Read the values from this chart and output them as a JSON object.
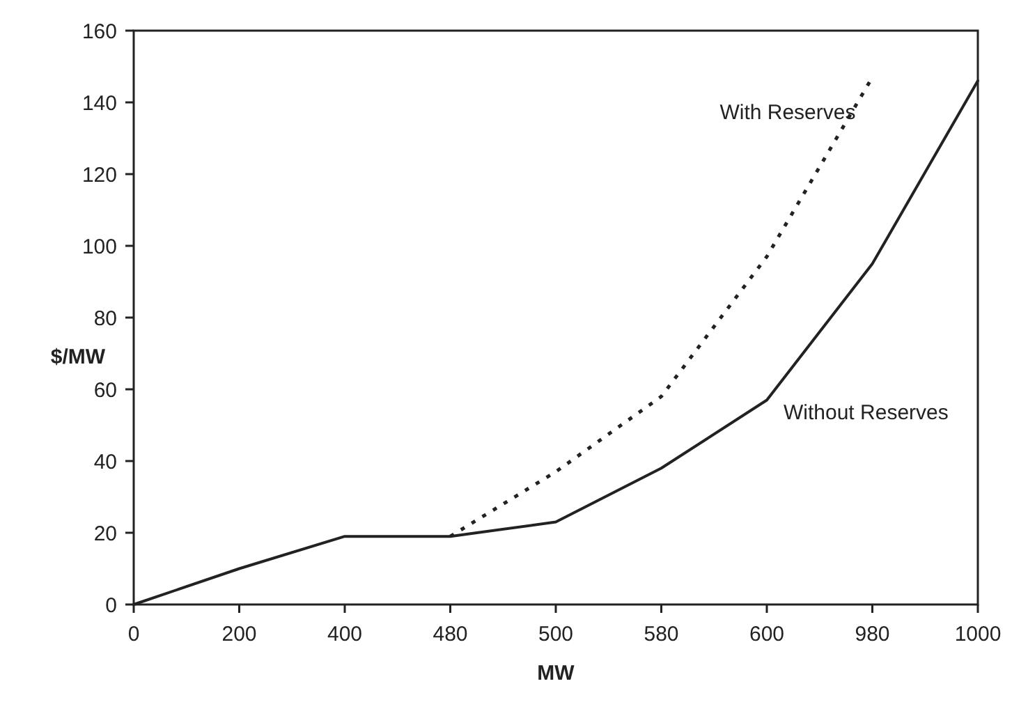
{
  "chart_data": {
    "type": "line",
    "xlabel": "MW",
    "ylabel": "$/MW",
    "categories": [
      "0",
      "200",
      "400",
      "480",
      "500",
      "580",
      "600",
      "980",
      "1000"
    ],
    "series": [
      {
        "name": "With Reserves",
        "color": "#222222",
        "line_style": "dotted",
        "values": [
          null,
          null,
          null,
          19,
          37,
          58,
          97,
          147,
          null
        ]
      },
      {
        "name": "Without Reserves",
        "color": "#222222",
        "line_style": "solid",
        "values": [
          0,
          10,
          19,
          19,
          23,
          38,
          57,
          95,
          146
        ]
      }
    ],
    "ylim": [
      0,
      160
    ],
    "yticks": [
      0,
      20,
      40,
      60,
      80,
      100,
      120,
      140,
      160
    ],
    "grid": false,
    "marker": "none"
  }
}
